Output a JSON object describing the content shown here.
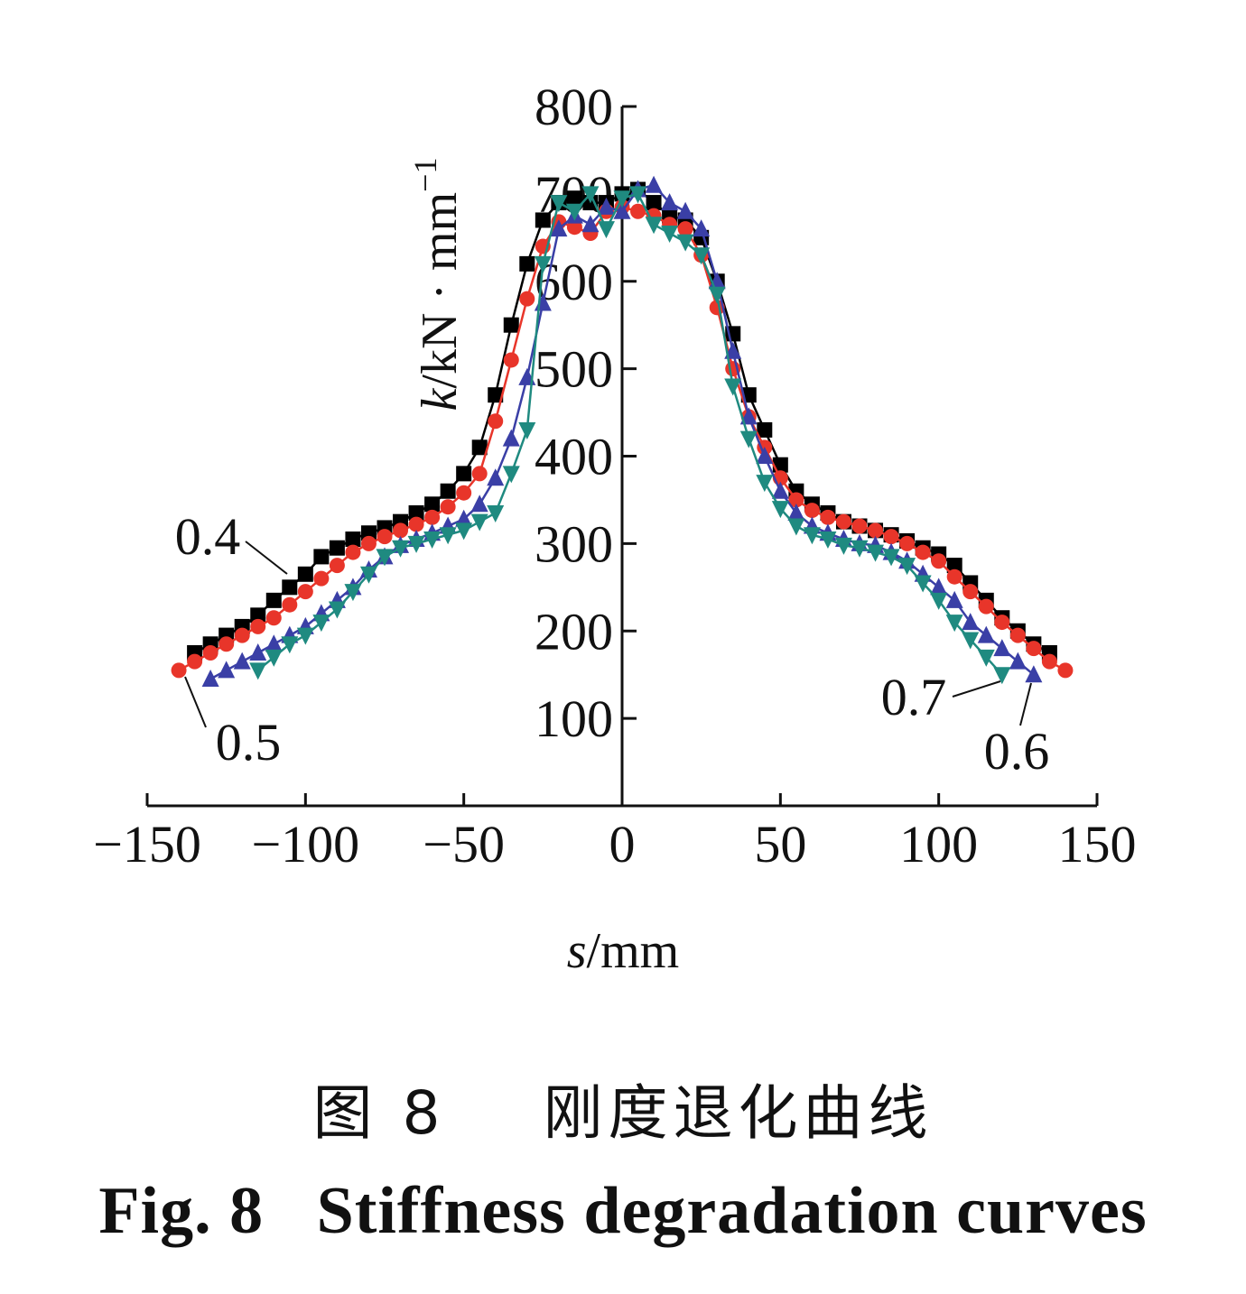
{
  "caption": {
    "cn_prefix": "图 8",
    "cn_title": "刚度退化曲线",
    "en_prefix": "Fig. 8",
    "en_title": "Stiffness degradation curves"
  },
  "chart_data": {
    "type": "line",
    "title": "",
    "xlabel_var": "s",
    "xlabel_unit": "/mm",
    "ylabel_var": "k",
    "ylabel_unit": "/kN · mm",
    "ylabel_exp": "−1",
    "xlim": [
      -150,
      150
    ],
    "ylim": [
      0,
      800
    ],
    "xticks": [
      -150,
      -100,
      -50,
      0,
      50,
      100,
      150
    ],
    "xtick_labels": [
      "−150",
      "−100",
      "−50",
      "0",
      "50",
      "100",
      "150"
    ],
    "yticks": [
      100,
      200,
      300,
      400,
      500,
      600,
      700,
      800
    ],
    "ytick_labels": [
      "100",
      "200",
      "300",
      "400",
      "500",
      "600",
      "700",
      "800"
    ],
    "grid": false,
    "series": [
      {
        "name": "0.4",
        "color": "#000000",
        "marker": "square",
        "x": [
          -135,
          -130,
          -125,
          -120,
          -115,
          -110,
          -105,
          -100,
          -95,
          -90,
          -85,
          -80,
          -75,
          -70,
          -65,
          -60,
          -55,
          -50,
          -45,
          -40,
          -35,
          -30,
          -25,
          -20,
          -15,
          -10,
          -5,
          0,
          5,
          10,
          15,
          20,
          25,
          30,
          35,
          40,
          45,
          50,
          55,
          60,
          65,
          70,
          75,
          80,
          85,
          90,
          95,
          100,
          105,
          110,
          115,
          120,
          125,
          130,
          135
        ],
        "y": [
          175,
          185,
          195,
          205,
          218,
          235,
          250,
          265,
          285,
          295,
          305,
          312,
          318,
          325,
          335,
          345,
          360,
          380,
          410,
          470,
          550,
          620,
          670,
          690,
          695,
          690,
          690,
          700,
          705,
          690,
          675,
          670,
          650,
          600,
          540,
          470,
          430,
          390,
          360,
          345,
          335,
          325,
          320,
          315,
          310,
          303,
          295,
          288,
          275,
          255,
          235,
          215,
          200,
          185,
          175
        ]
      },
      {
        "name": "0.5",
        "color": "#e8352a",
        "marker": "circle",
        "x": [
          -140,
          -135,
          -130,
          -125,
          -120,
          -115,
          -110,
          -105,
          -100,
          -95,
          -90,
          -85,
          -80,
          -75,
          -70,
          -65,
          -60,
          -55,
          -50,
          -45,
          -40,
          -35,
          -30,
          -25,
          -20,
          -15,
          -10,
          -5,
          0,
          5,
          10,
          15,
          20,
          25,
          30,
          35,
          40,
          45,
          50,
          55,
          60,
          65,
          70,
          75,
          80,
          85,
          90,
          95,
          100,
          105,
          110,
          115,
          120,
          125,
          130,
          135,
          140
        ],
        "y": [
          155,
          165,
          175,
          185,
          195,
          205,
          215,
          230,
          245,
          260,
          275,
          290,
          300,
          308,
          315,
          322,
          330,
          342,
          358,
          380,
          440,
          510,
          580,
          640,
          668,
          662,
          655,
          680,
          685,
          680,
          675,
          665,
          660,
          630,
          570,
          500,
          445,
          410,
          375,
          350,
          338,
          330,
          325,
          320,
          315,
          308,
          300,
          290,
          280,
          262,
          245,
          228,
          210,
          195,
          180,
          165,
          155
        ]
      },
      {
        "name": "0.6",
        "color": "#3a3fa6",
        "marker": "triangle-up",
        "x": [
          -130,
          -125,
          -120,
          -115,
          -110,
          -105,
          -100,
          -95,
          -90,
          -85,
          -80,
          -75,
          -70,
          -65,
          -60,
          -55,
          -50,
          -45,
          -40,
          -35,
          -30,
          -25,
          -20,
          -15,
          -10,
          -5,
          0,
          5,
          10,
          15,
          20,
          25,
          30,
          35,
          40,
          45,
          50,
          55,
          60,
          65,
          70,
          75,
          80,
          85,
          90,
          95,
          100,
          105,
          110,
          115,
          120,
          125,
          130
        ],
        "y": [
          145,
          155,
          165,
          175,
          185,
          195,
          205,
          220,
          235,
          250,
          270,
          285,
          298,
          305,
          312,
          320,
          328,
          345,
          375,
          420,
          490,
          575,
          660,
          675,
          665,
          685,
          680,
          705,
          710,
          690,
          680,
          660,
          600,
          520,
          445,
          400,
          360,
          335,
          320,
          312,
          305,
          300,
          298,
          290,
          280,
          265,
          250,
          235,
          210,
          195,
          180,
          165,
          150
        ]
      },
      {
        "name": "0.7",
        "color": "#1f8a80",
        "marker": "triangle-down",
        "x": [
          -115,
          -110,
          -105,
          -100,
          -95,
          -90,
          -85,
          -80,
          -75,
          -70,
          -65,
          -60,
          -55,
          -50,
          -45,
          -40,
          -35,
          -30,
          -25,
          -20,
          -15,
          -10,
          -5,
          0,
          5,
          10,
          15,
          20,
          25,
          30,
          35,
          40,
          45,
          50,
          55,
          60,
          65,
          70,
          75,
          80,
          85,
          90,
          95,
          100,
          105,
          110,
          115,
          120
        ],
        "y": [
          155,
          170,
          185,
          195,
          210,
          225,
          245,
          265,
          285,
          295,
          300,
          305,
          310,
          315,
          325,
          335,
          380,
          430,
          620,
          690,
          680,
          700,
          660,
          695,
          700,
          665,
          655,
          645,
          630,
          585,
          480,
          420,
          370,
          340,
          320,
          310,
          305,
          298,
          295,
          290,
          285,
          275,
          255,
          235,
          210,
          190,
          170,
          150
        ]
      }
    ],
    "annotations": [
      {
        "text": "0.4",
        "series": "0.4"
      },
      {
        "text": "0.5",
        "series": "0.5"
      },
      {
        "text": "0.7",
        "series": "0.7"
      },
      {
        "text": "0.6",
        "series": "0.6"
      }
    ]
  }
}
